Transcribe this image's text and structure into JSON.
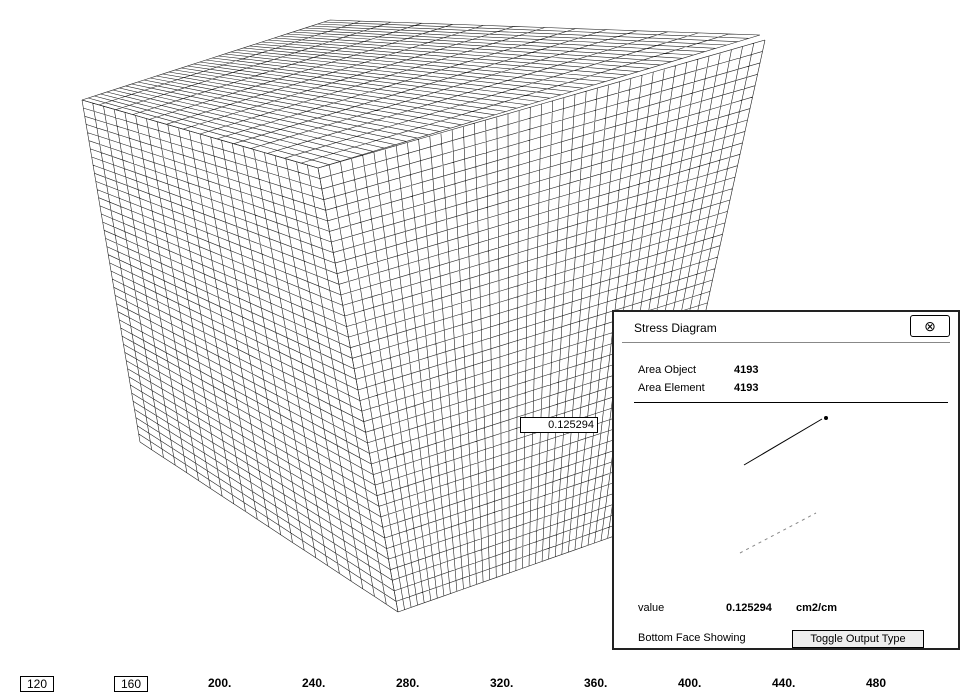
{
  "viewport": {
    "tooltip": "0.125294"
  },
  "dialog": {
    "title": "Stress Diagram",
    "area_object": {
      "label": "Area Object",
      "value": "4193"
    },
    "area_element": {
      "label": "Area Element",
      "value": "4193"
    },
    "value": {
      "label": "value",
      "number": "0.125294",
      "unit": "cm2/cm"
    },
    "face_status": "Bottom Face Showing",
    "toggle_button": "Toggle Output Type"
  },
  "scale": {
    "labels": [
      "120",
      "160",
      "200.",
      "240.",
      "280.",
      "320.",
      "360.",
      "400.",
      "440.",
      "480"
    ]
  }
}
